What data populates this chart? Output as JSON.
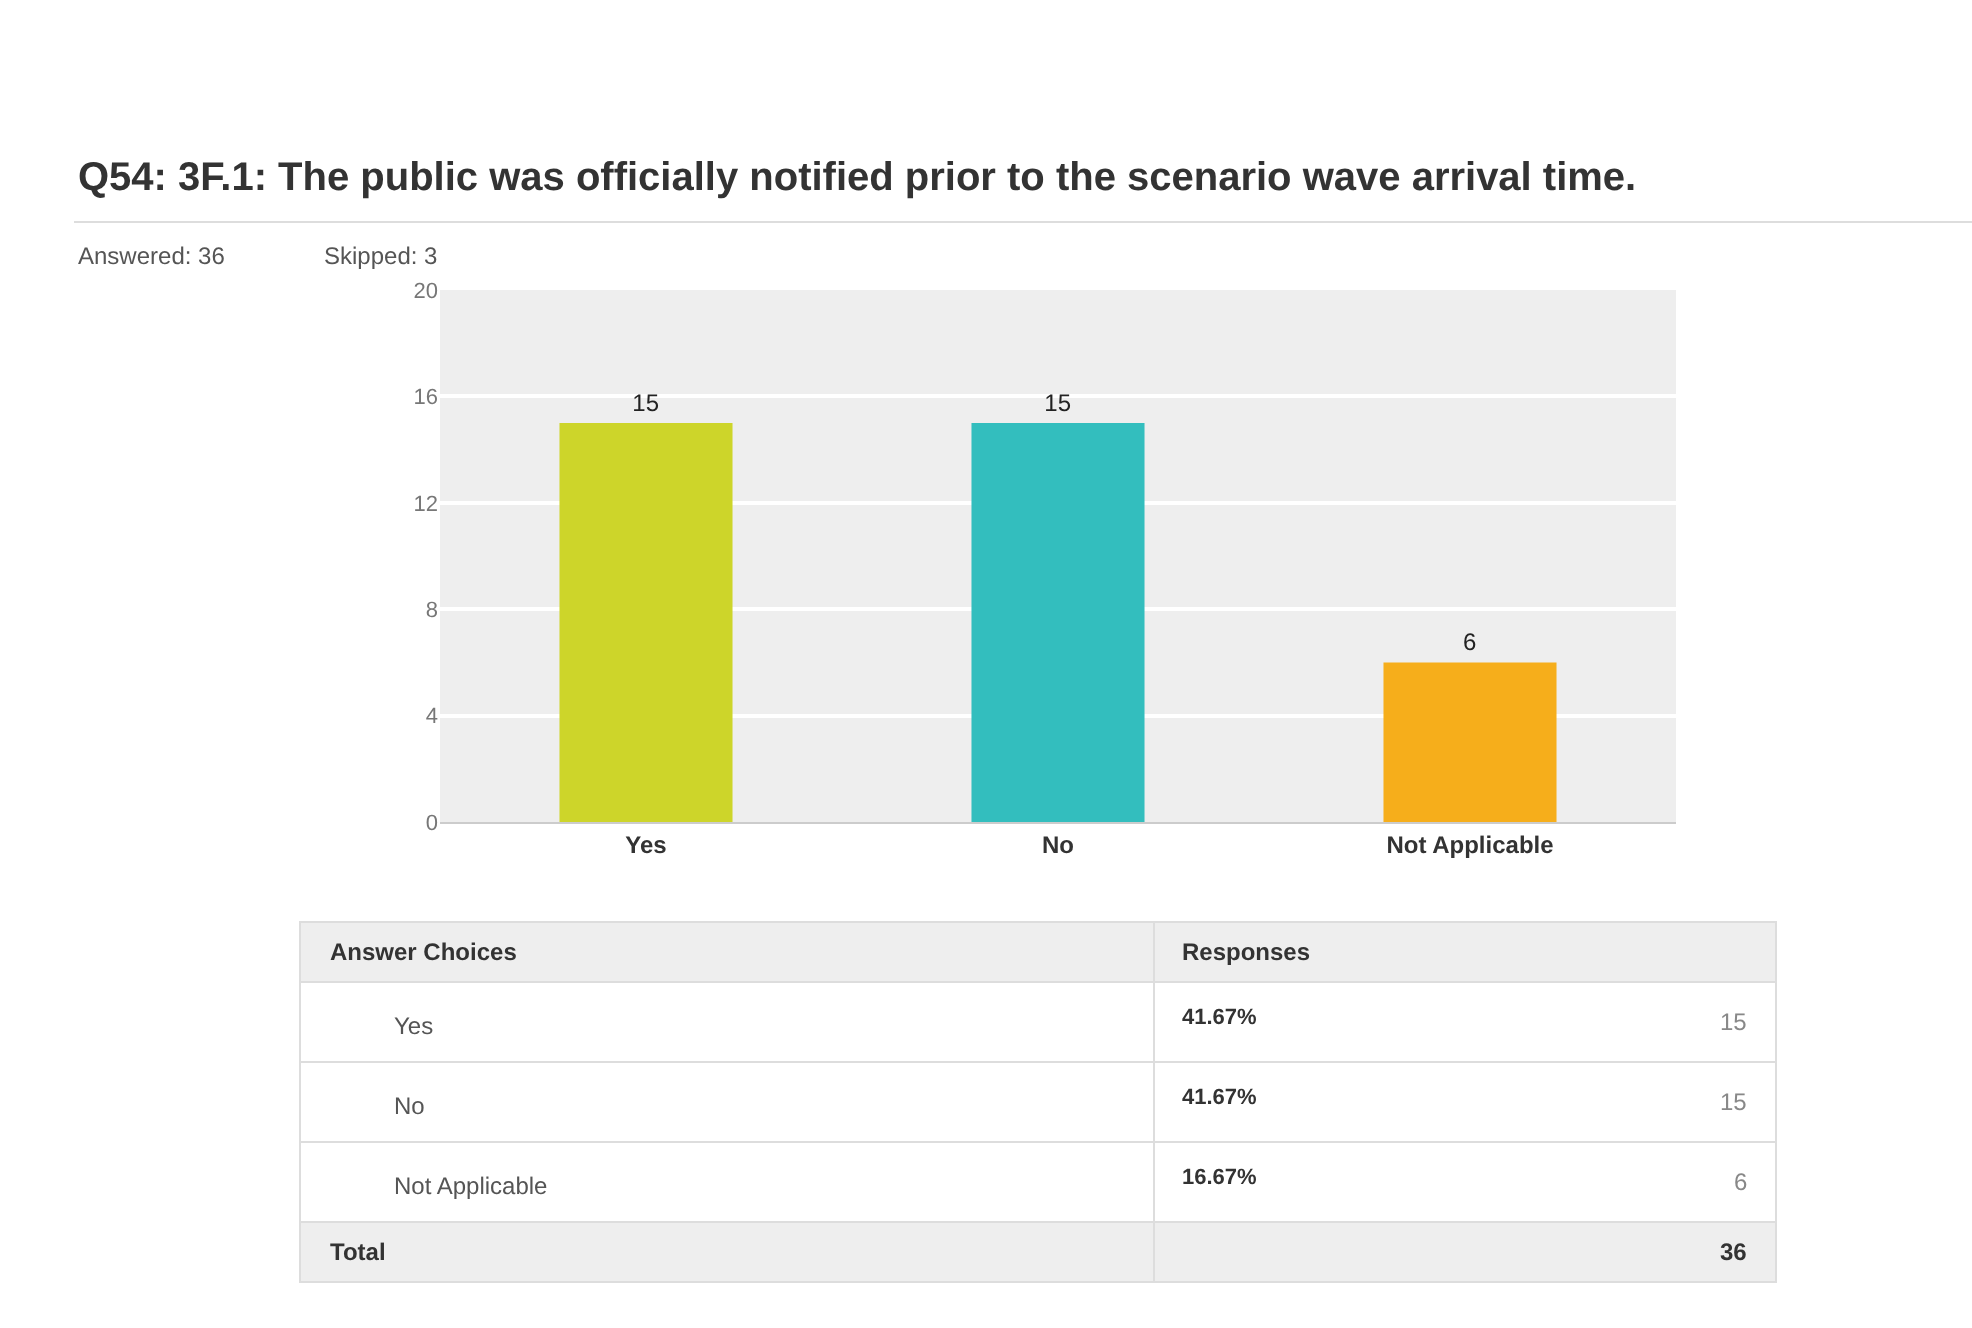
{
  "chart_data": {
    "type": "bar",
    "title": "Q54: 3F.1: The public was officially notified prior to the scenario wave arrival time.",
    "categories": [
      "Yes",
      "No",
      "Not Applicable"
    ],
    "values": [
      15,
      15,
      6
    ],
    "colors": [
      "#cdd52a",
      "#33bebe",
      "#f6ae1b"
    ],
    "ylim": [
      0,
      20
    ],
    "yticks": [
      0,
      4,
      8,
      12,
      16,
      20
    ],
    "grid": "y",
    "data_labels": true,
    "annotations": [
      "Answered: 36",
      "Skipped: 3",
      "Answer Choices",
      "Responses",
      "Yes",
      "41.67%",
      "15",
      "No",
      "41.67%",
      "15",
      "Not Applicable",
      "16.67%",
      "6",
      "Total",
      "36"
    ]
  }
}
